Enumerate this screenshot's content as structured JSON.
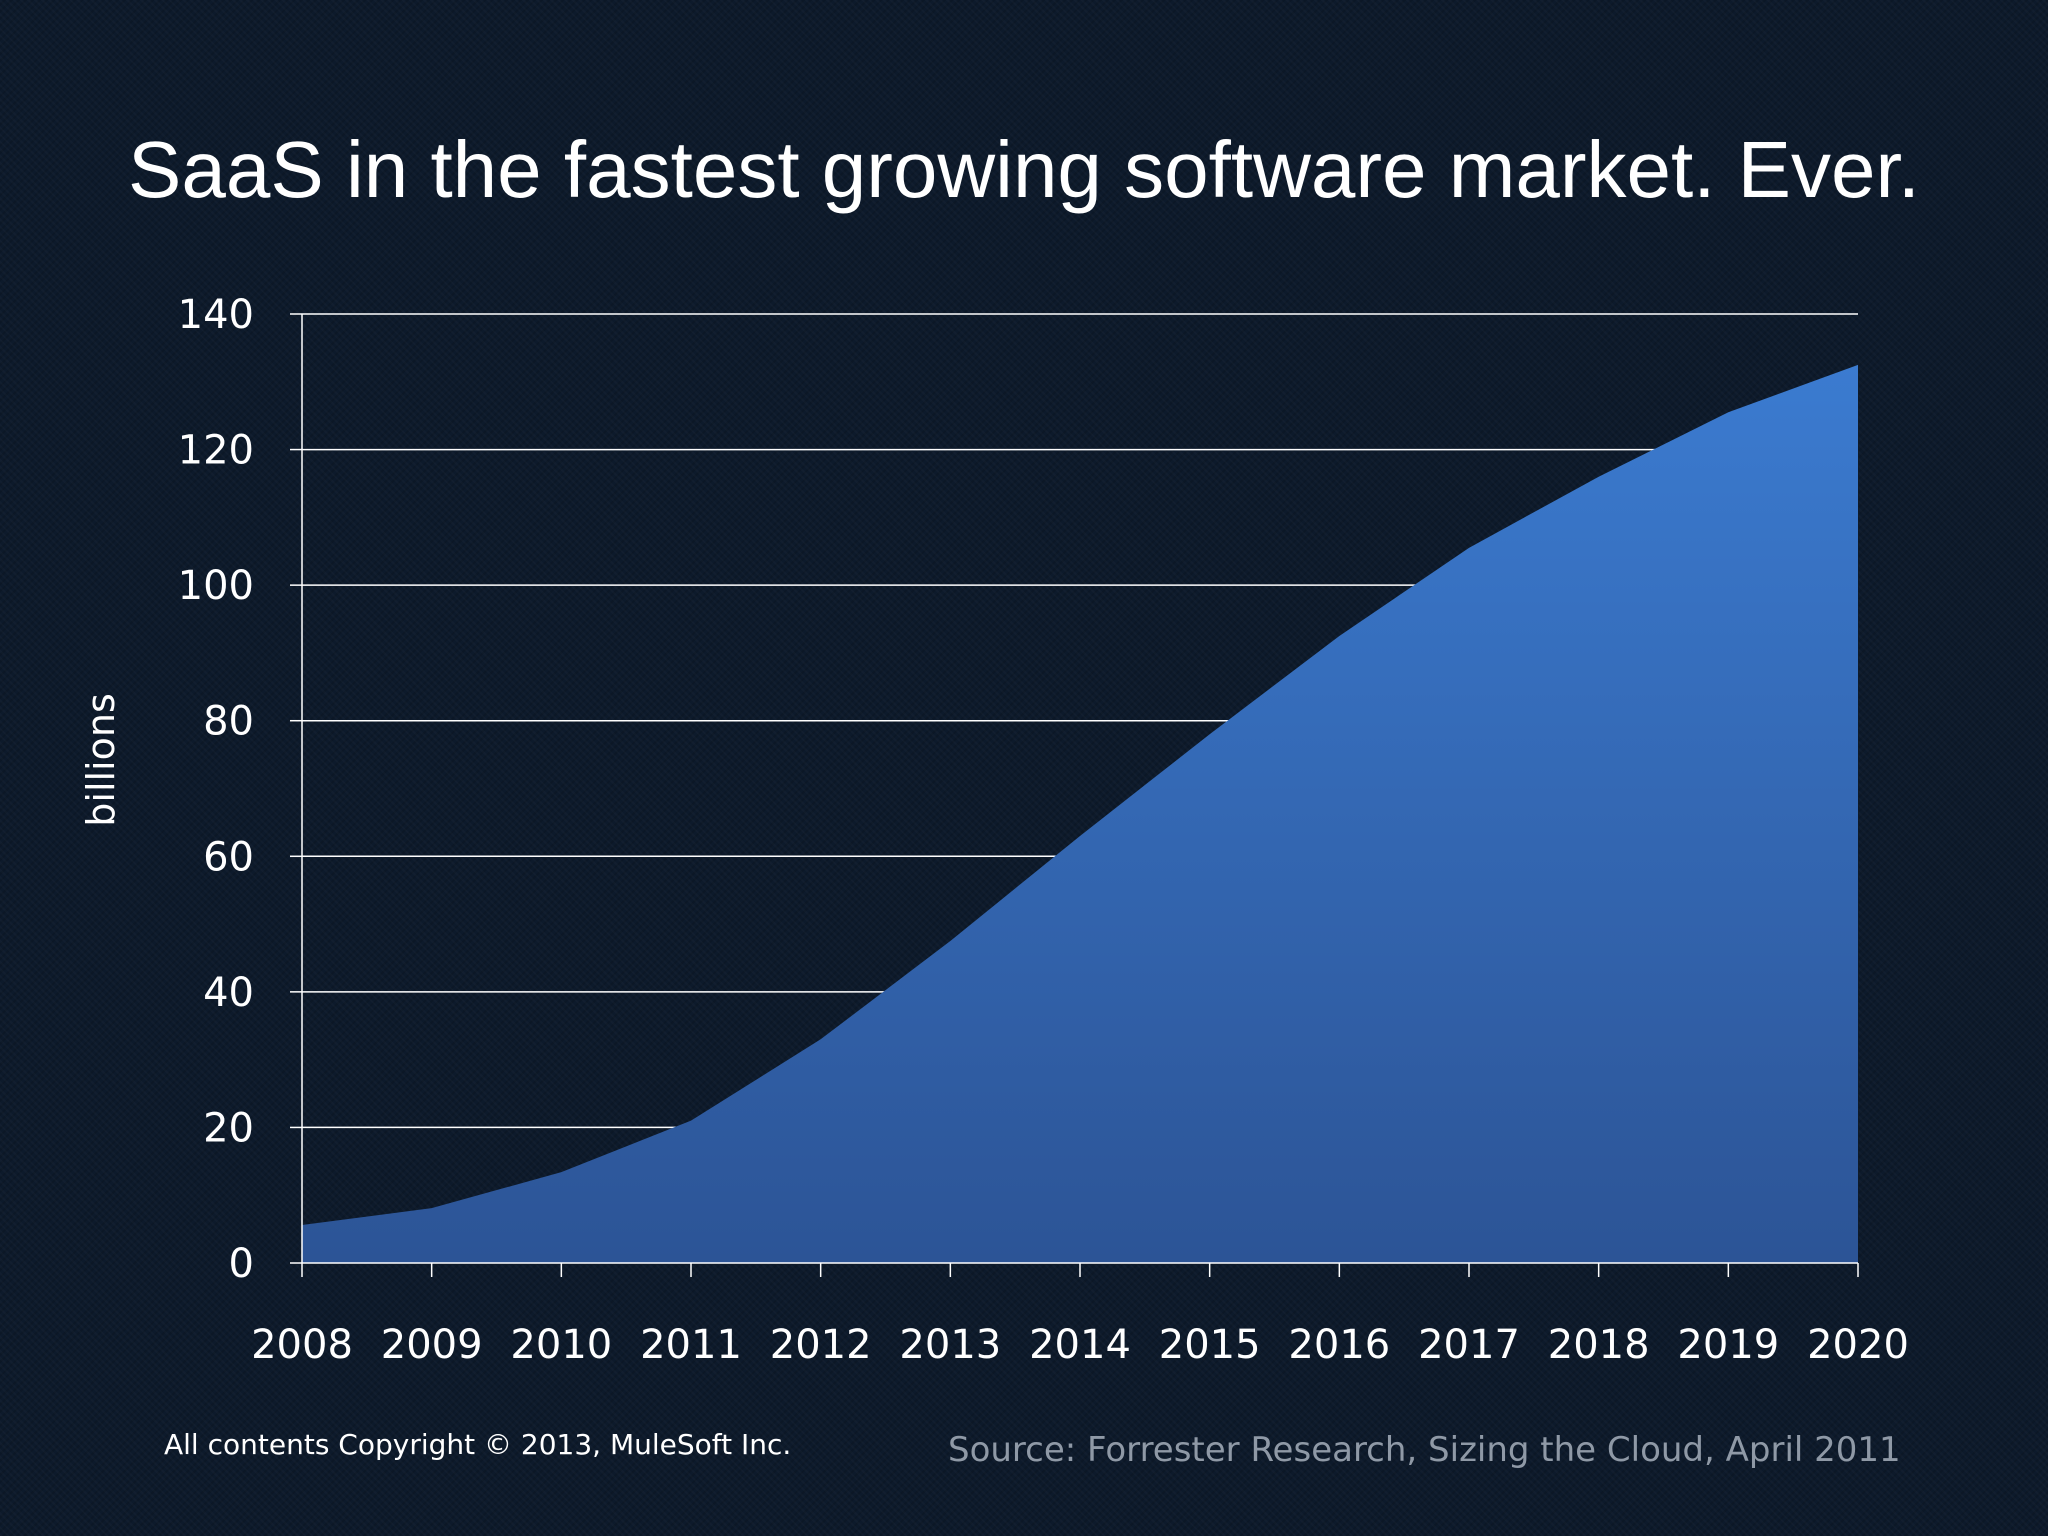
{
  "slide": {
    "title": "SaaS in the fastest growing software market. Ever.",
    "copyright": "All contents Copyright © 2013, MuleSoft Inc.",
    "source": "Source: Forrester Research, Sizing the Cloud, April 2011"
  },
  "colors": {
    "background": "#0d1a2b",
    "area_top": "#3b7bd0",
    "area_bottom": "#2c5496",
    "gridline": "#ffffff",
    "text": "#ffffff",
    "source_text": "#8f99a6"
  },
  "chart_data": {
    "type": "area",
    "title": "",
    "xlabel": "",
    "ylabel": "billions",
    "x": [
      "2008",
      "2009",
      "2010",
      "2011",
      "2012",
      "2013",
      "2014",
      "2015",
      "2016",
      "2017",
      "2018",
      "2019",
      "2020"
    ],
    "series": [
      {
        "values": [
          5.6,
          8.1,
          13.4,
          21,
          33,
          47.5,
          63,
          78,
          92.5,
          105.5,
          116,
          125.5,
          132.5
        ]
      }
    ],
    "ylim": [
      0,
      140
    ],
    "yticks": [
      0,
      20,
      40,
      60,
      80,
      100,
      120,
      140
    ],
    "grid": true,
    "legend": "none"
  }
}
